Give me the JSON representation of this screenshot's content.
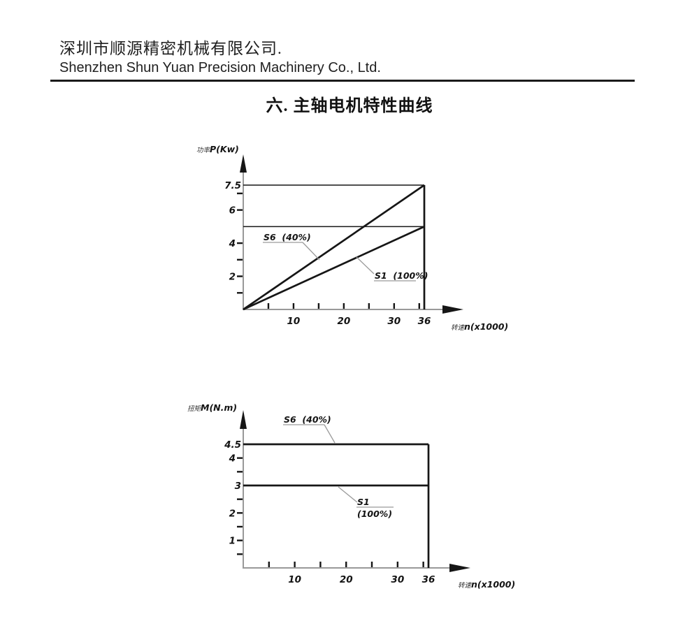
{
  "header": {
    "company_cn": "深圳市顺源精密机械有限公司.",
    "company_en": "Shenzhen Shun Yuan Precision Machinery Co., Ltd."
  },
  "title": "六. 主轴电机特性曲线",
  "colors": {
    "ink": "#161616",
    "axis": "#999999",
    "leader": "#9b9b9b"
  },
  "chart_data": [
    {
      "type": "line",
      "name": "spindle-motor-power-curve",
      "ylabel_cn": "功率",
      "ylabel": "P(Kw)",
      "xlabel_cn": "转速",
      "xlabel": "n(x1000)",
      "xlim": [
        0,
        36
      ],
      "ylim": [
        0,
        7.5
      ],
      "x_ticks": [
        5,
        10,
        15,
        20,
        25,
        30,
        35
      ],
      "x_tick_labels": [
        {
          "v": 10,
          "t": "10"
        },
        {
          "v": 20,
          "t": "20"
        },
        {
          "v": 30,
          "t": "30"
        },
        {
          "v": 36,
          "t": "36"
        }
      ],
      "y_ticks": [
        1,
        2,
        3,
        4,
        6,
        7
      ],
      "y_tick_labels": [
        {
          "v": 2,
          "t": "2"
        },
        {
          "v": 4,
          "t": "4"
        },
        {
          "v": 6,
          "t": "6"
        },
        {
          "v": 7.5,
          "t": "7.5",
          "flush": true
        }
      ],
      "series": [
        {
          "name": "S6 (40%)",
          "points": [
            [
              0,
              0
            ],
            [
              36,
              7.5
            ]
          ],
          "weight": "thick"
        },
        {
          "name": "S1 (100%)",
          "points": [
            [
              0,
              0
            ],
            [
              36,
              5
            ]
          ],
          "weight": "thick"
        },
        {
          "name": "power-limit-7.5kw",
          "points": [
            [
              0,
              7.5
            ],
            [
              36,
              7.5
            ]
          ],
          "weight": "thin"
        },
        {
          "name": "power-limit-5kw",
          "points": [
            [
              0,
              5
            ],
            [
              36,
              5
            ]
          ],
          "weight": "thin"
        },
        {
          "name": "max-speed-boundary-36",
          "points": [
            [
              36,
              0
            ],
            [
              36,
              7.5
            ]
          ],
          "weight": "thick"
        }
      ],
      "annotations": [
        {
          "lines": [
            "S6  (40%)"
          ]
        },
        {
          "lines": [
            "S1  (100%)"
          ]
        }
      ]
    },
    {
      "type": "line",
      "name": "spindle-motor-torque-curve",
      "ylabel_cn": "扭矩",
      "ylabel": "M(N.m)",
      "xlabel_cn": "转速",
      "xlabel": "n(x1000)",
      "xlim": [
        0,
        36
      ],
      "ylim": [
        0,
        4.5
      ],
      "x_ticks": [
        5,
        10,
        15,
        20,
        25,
        30,
        35
      ],
      "x_tick_labels": [
        {
          "v": 10,
          "t": "10"
        },
        {
          "v": 20,
          "t": "20"
        },
        {
          "v": 30,
          "t": "30"
        },
        {
          "v": 36,
          "t": "36"
        }
      ],
      "y_ticks": [
        0.5,
        1,
        1.5,
        2,
        2.5,
        3.5,
        4
      ],
      "y_tick_labels": [
        {
          "v": 1,
          "t": "1"
        },
        {
          "v": 2,
          "t": "2"
        },
        {
          "v": 3,
          "t": "3",
          "flush": true
        },
        {
          "v": 4,
          "t": "4"
        },
        {
          "v": 4.5,
          "t": "4.5",
          "flush": true
        }
      ],
      "series": [
        {
          "name": "S6 (40%)",
          "points": [
            [
              0,
              4.5
            ],
            [
              36,
              4.5
            ]
          ],
          "weight": "thick"
        },
        {
          "name": "S1 (100%)",
          "points": [
            [
              0,
              3
            ],
            [
              36,
              3
            ]
          ],
          "weight": "thick"
        },
        {
          "name": "max-speed-boundary-36",
          "points": [
            [
              36,
              0
            ],
            [
              36,
              4.5
            ]
          ],
          "weight": "thick"
        }
      ],
      "annotations": [
        {
          "lines": [
            "S6  (40%)"
          ]
        },
        {
          "lines": [
            "S1",
            "(100%)"
          ]
        }
      ]
    }
  ]
}
